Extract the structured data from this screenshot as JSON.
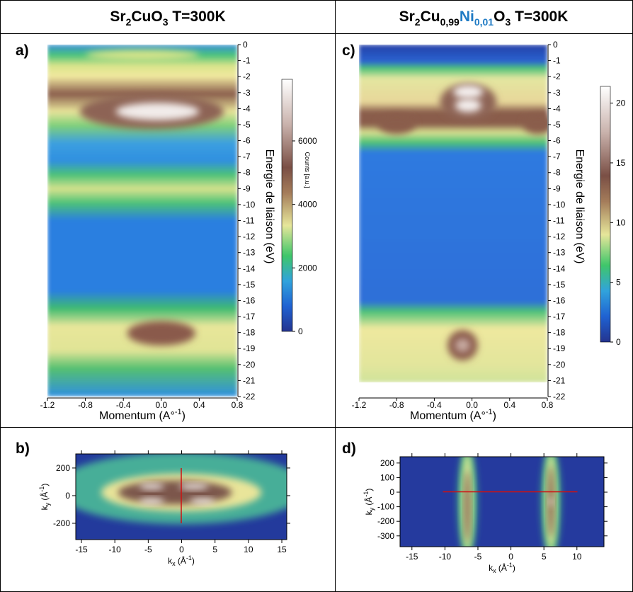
{
  "header": {
    "left": [
      "Sr",
      "2",
      "CuO",
      "3",
      " T=300K"
    ],
    "right": [
      "Sr",
      "2",
      "Cu",
      "0,99",
      "Ni",
      "0,01",
      "O",
      "3",
      " T=300K"
    ]
  },
  "chart_data": [
    {
      "type": "heatmap",
      "panel": "a)",
      "kind": "energy",
      "xlabel": [
        "Momentum (A°",
        "-1",
        ")"
      ],
      "ylabel": "Energie de liaison (eV)",
      "xlim": [
        -1.2,
        0.8
      ],
      "xticks": [
        -1.2,
        -0.8,
        -0.4,
        {
          "value": 0,
          "label": "0.0"
        },
        0.4,
        0.8
      ],
      "ylim": [
        -22,
        0
      ],
      "yticks": [
        0,
        -1,
        -2,
        -3,
        -4,
        -5,
        -6,
        -7,
        -8,
        -9,
        -10,
        -11,
        -12,
        -13,
        -14,
        -15,
        -16,
        -17,
        -18,
        -19,
        -20,
        -21,
        -22
      ],
      "colorbar": {
        "label": "Counts [a.u.]",
        "lim": [
          0,
          7940
        ],
        "ticks": [
          0,
          2000,
          4000,
          6000
        ]
      }
    },
    {
      "type": "heatmap",
      "panel": "b)",
      "kind": "k",
      "xlabel": [
        "k",
        "x",
        " (Å",
        "-1",
        ")"
      ],
      "ylabel": [
        "k",
        "y",
        " (Å",
        "-1",
        ")"
      ],
      "xlim": [
        -15.85,
        15.74
      ],
      "xticks": [
        -15,
        -10,
        -5,
        0,
        5,
        10,
        15
      ],
      "ylim": [
        -318,
        302
      ],
      "yticks": [
        -200,
        0,
        200
      ]
    },
    {
      "type": "heatmap",
      "panel": "c)",
      "kind": "energy",
      "xlabel": [
        "Momentum (A°",
        "-1",
        ")"
      ],
      "ylabel": "Energie de liaison (eV)",
      "xlim": [
        -1.2,
        0.8
      ],
      "xticks": [
        -1.2,
        -0.8,
        -0.4,
        {
          "value": 0,
          "label": "0.0"
        },
        0.4,
        0.8
      ],
      "ylim": [
        -22,
        0
      ],
      "yticks": [
        0,
        -1,
        -2,
        -3,
        -4,
        -5,
        -6,
        -7,
        -8,
        -9,
        -10,
        -11,
        -12,
        -13,
        -14,
        -15,
        -16,
        -17,
        -18,
        -19,
        -20,
        -21,
        -22
      ],
      "colorbar": {
        "lim": [
          0,
          21.4
        ],
        "ticks": [
          0,
          5,
          10,
          15,
          20
        ]
      }
    },
    {
      "type": "heatmap",
      "panel": "d)",
      "kind": "k",
      "xlabel": [
        "k",
        "x",
        " (Å",
        "-1",
        ")"
      ],
      "ylabel": [
        "k",
        "y",
        " (Å",
        "-1",
        ")"
      ],
      "xlim": [
        -16.8,
        14.1
      ],
      "xticks": [
        -15,
        -10,
        -5,
        0,
        5,
        10
      ],
      "ylim": [
        -374,
        243
      ],
      "yticks": [
        -300,
        -200,
        -100,
        0,
        100,
        200
      ]
    }
  ]
}
